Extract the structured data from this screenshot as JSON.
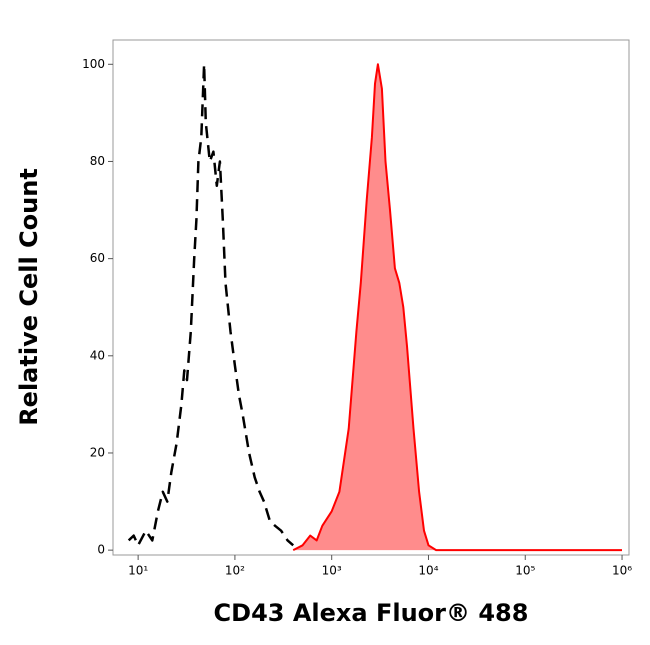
{
  "chart_data": {
    "type": "histogram-line",
    "xlabel": "CD43 Alexa Fluor® 488",
    "ylabel": "Relative Cell Count",
    "xscale": "log",
    "xlim": [
      5.5,
      1180000
    ],
    "ylim": [
      -1,
      105
    ],
    "xticks": [
      {
        "value": 10,
        "label": "10¹"
      },
      {
        "value": 100,
        "label": "10²"
      },
      {
        "value": 1000,
        "label": "10³"
      },
      {
        "value": 10000,
        "label": "10⁴"
      },
      {
        "value": 100000,
        "label": "10⁵"
      },
      {
        "value": 1000000,
        "label": "10⁶"
      }
    ],
    "yticks": [
      0,
      20,
      40,
      60,
      80,
      100
    ],
    "series": [
      {
        "color": "#000000",
        "dashed": true,
        "fill": false,
        "x": [
          8,
          9,
          10,
          12,
          14,
          16,
          18,
          20,
          22,
          25,
          28,
          30,
          32,
          35,
          38,
          40,
          42,
          45,
          48,
          50,
          55,
          60,
          65,
          70,
          75,
          80,
          90,
          100,
          110,
          120,
          140,
          160,
          180,
          200,
          230,
          260,
          300,
          350,
          400
        ],
        "values": [
          2,
          3,
          1,
          4,
          2,
          8,
          12,
          10,
          16,
          22,
          30,
          37,
          35,
          45,
          60,
          68,
          80,
          85,
          100,
          88,
          80,
          82,
          75,
          80,
          68,
          55,
          45,
          38,
          32,
          28,
          20,
          15,
          12,
          10,
          6,
          5,
          4,
          2,
          1
        ]
      },
      {
        "color": "#ff0000",
        "dashed": false,
        "fill": true,
        "x": [
          400,
          500,
          600,
          700,
          800,
          1000,
          1200,
          1500,
          1800,
          2000,
          2300,
          2600,
          2800,
          3000,
          3300,
          3600,
          4000,
          4500,
          5000,
          5500,
          6000,
          7000,
          8000,
          9000,
          10000,
          12000,
          100000,
          1000000
        ],
        "values": [
          0,
          1,
          3,
          2,
          5,
          8,
          12,
          25,
          45,
          55,
          72,
          85,
          96,
          100,
          95,
          80,
          70,
          58,
          55,
          50,
          42,
          25,
          12,
          4,
          1,
          0,
          0,
          0
        ]
      }
    ]
  }
}
